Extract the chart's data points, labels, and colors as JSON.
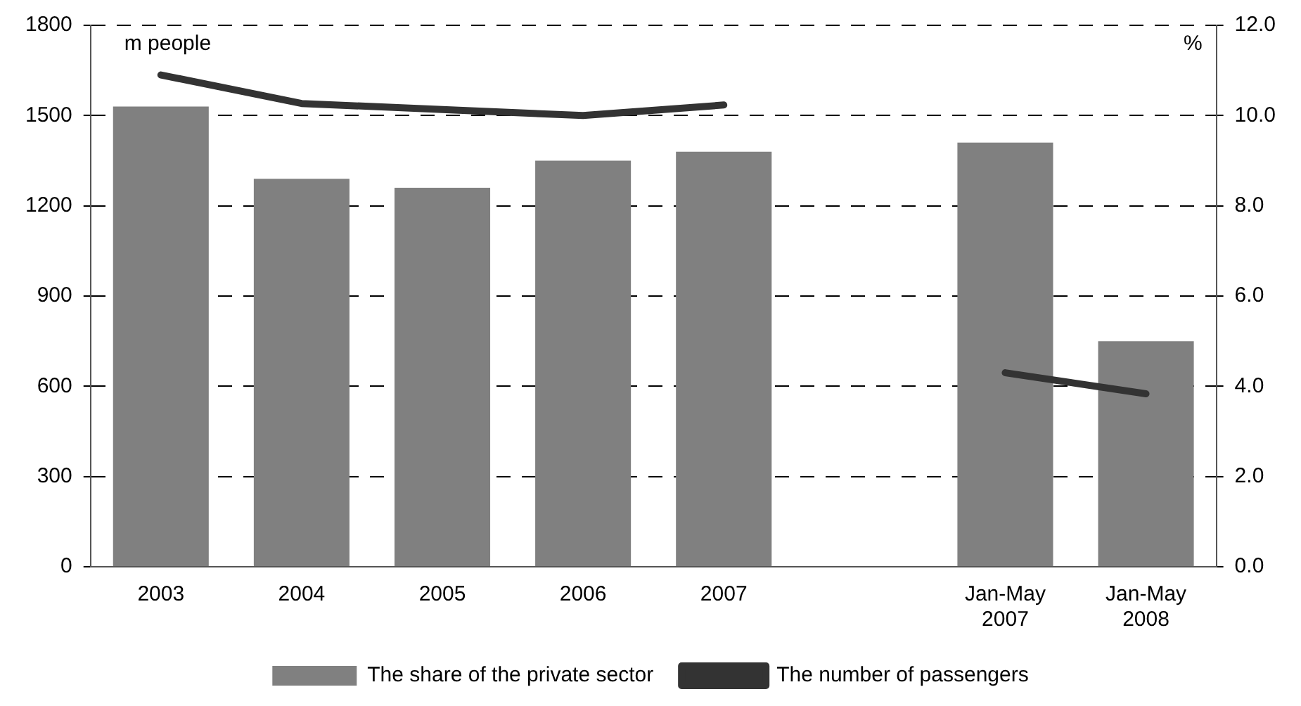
{
  "chart_data": {
    "type": "bar",
    "categories": [
      "2003",
      "2004",
      "2005",
      "2006",
      "2007",
      null,
      "Jan-May 2007",
      "Jan-May 2008"
    ],
    "series": [
      {
        "name": "The share of the private sector",
        "axis": "y2",
        "color": "#808080",
        "values": [
          10.2,
          8.6,
          8.4,
          9.0,
          9.2,
          null,
          9.4,
          5.0
        ]
      },
      {
        "name": "The number of passengers",
        "type": "line",
        "axis": "y",
        "color": "#333333",
        "values": [
          1635,
          1540,
          1520,
          1500,
          1535,
          null,
          645,
          575
        ]
      }
    ],
    "ylabel": "m people",
    "y2label": "%",
    "ylim": [
      0,
      1800
    ],
    "yticks": [
      0,
      300,
      600,
      900,
      1200,
      1500,
      1800
    ],
    "y2lim": [
      0,
      12
    ],
    "y2ticks": [
      {
        "value": 0,
        "label": "0.0"
      },
      {
        "value": 2,
        "label": "2.0"
      },
      {
        "value": 4,
        "label": "4.0"
      },
      {
        "value": 6,
        "label": "6.0"
      },
      {
        "value": 8,
        "label": "8.0"
      },
      {
        "value": 10,
        "label": "10.0"
      },
      {
        "value": 12,
        "label": "12.0"
      }
    ],
    "grid": "y",
    "line_style": "solid",
    "marker": "none",
    "legend": "bottom"
  }
}
